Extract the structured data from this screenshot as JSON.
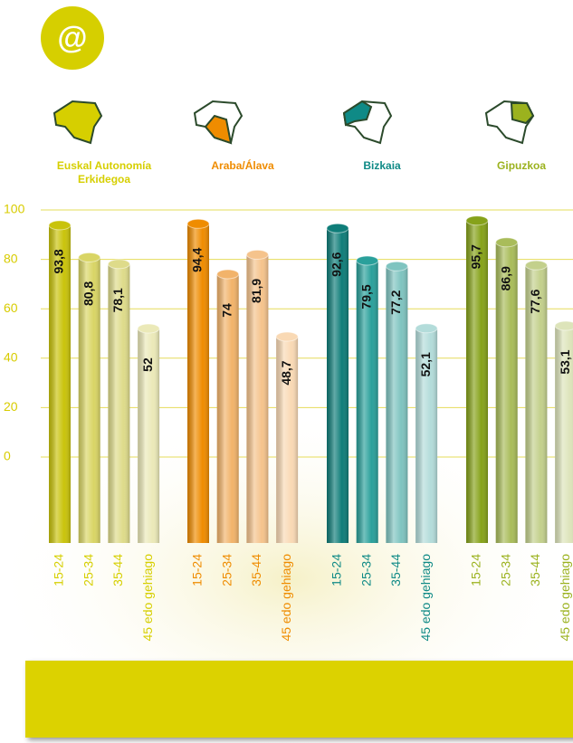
{
  "icon": "@",
  "chart_data": {
    "type": "bar",
    "categories": [
      "15-24",
      "25-34",
      "35-44",
      "45 edo gehiago"
    ],
    "series": [
      {
        "name": "Euskal Autonomía Erkidegoa",
        "color": "#d6cf00",
        "colors": [
          "#c9c30b",
          "#d9d565",
          "#dedb8a",
          "#ebe9b8"
        ],
        "values": [
          93.8,
          80.8,
          78.1,
          52
        ],
        "value_labels": [
          "93,8",
          "80,8",
          "78,1",
          "52"
        ]
      },
      {
        "name": "Araba/Álava",
        "color": "#ef8c00",
        "colors": [
          "#ef8c00",
          "#f2b36a",
          "#f5c38c",
          "#f9d9b4"
        ],
        "values": [
          94.4,
          74,
          81.9,
          48.7
        ],
        "value_labels": [
          "94,4",
          "74",
          "81,9",
          "48,7"
        ]
      },
      {
        "name": "Bizkaia",
        "color": "#0f8a86",
        "colors": [
          "#0f7d79",
          "#2aa09b",
          "#7fc4c0",
          "#b3dcda"
        ],
        "values": [
          92.6,
          79.5,
          77.2,
          52.1
        ],
        "value_labels": [
          "92,6",
          "79,5",
          "77,2",
          "52,1"
        ]
      },
      {
        "name": "Gipuzkoa",
        "color": "#9bb21e",
        "colors": [
          "#86a21a",
          "#a9bc5a",
          "#c3d08c",
          "#dde4ba"
        ],
        "values": [
          95.7,
          86.9,
          77.6,
          53.1
        ],
        "value_labels": [
          "95,7",
          "86,9",
          "77,6",
          "53,1"
        ]
      }
    ],
    "ylim": [
      0,
      100
    ],
    "yticks": [
      0,
      20,
      40,
      60,
      80,
      100
    ],
    "grid": true
  }
}
